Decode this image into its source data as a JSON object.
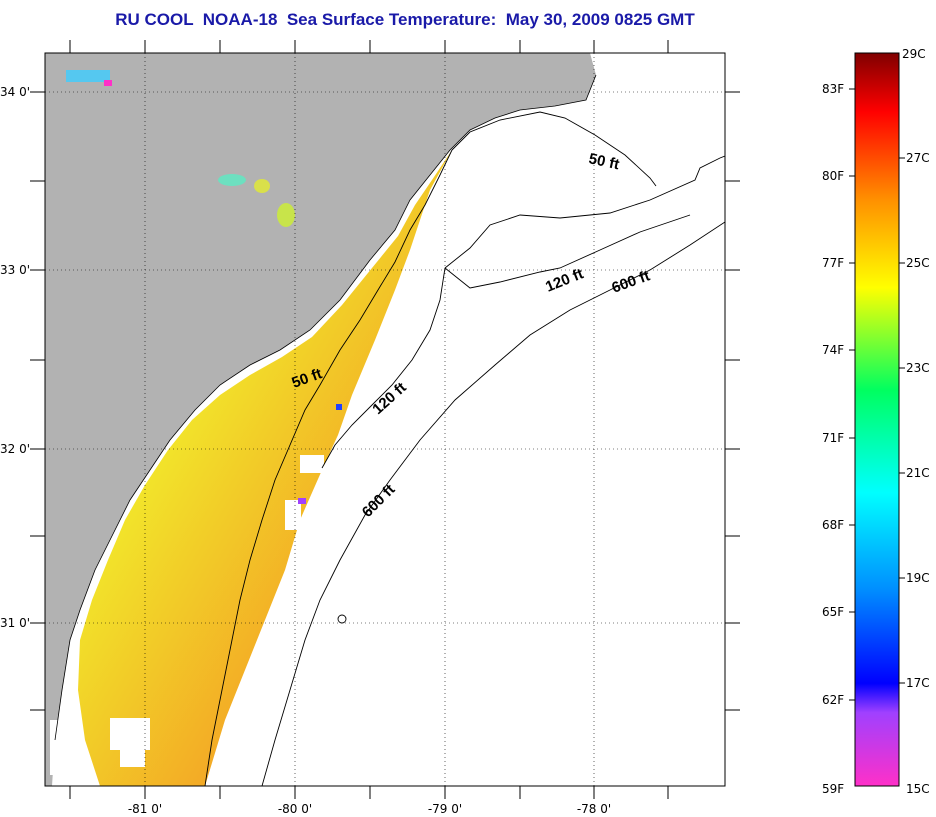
{
  "title": "RU COOL  NOAA-18  Sea Surface Temperature:  May 30, 2009 0825 GMT",
  "map": {
    "lon_range": [
      -81.65,
      -77.15
    ],
    "lat_range": [
      30.05,
      34.22
    ],
    "lat_ticks": [
      {
        "value": 34,
        "label": "34 0'"
      },
      {
        "value": 33,
        "label": "33 0'"
      },
      {
        "value": 32,
        "label": "32 0'"
      },
      {
        "value": 31,
        "label": "31 0'"
      }
    ],
    "lon_ticks": [
      {
        "value": -81,
        "label": "-81 0'"
      },
      {
        "value": -80,
        "label": "-80 0'"
      },
      {
        "value": -79,
        "label": "-79 0'"
      },
      {
        "value": -78,
        "label": "-78 0'"
      }
    ],
    "grid": "dotted",
    "land_color": "#b2b2b2",
    "no_data_color": "#ffffff",
    "contours": [
      {
        "label": "50 ft",
        "text": "50 ft"
      },
      {
        "label": "50 ft",
        "text": "50 ft"
      },
      {
        "label": "120 ft",
        "text": "120 ft"
      },
      {
        "label": "120 ft",
        "text": "120 ft"
      },
      {
        "label": "600 ft",
        "text": "600 ft"
      },
      {
        "label": "600 ft",
        "text": "600 ft"
      }
    ]
  },
  "colorbar": {
    "range_c": [
      15,
      29
    ],
    "fahrenheit_labels": [
      "83F",
      "80F",
      "77F",
      "74F",
      "71F",
      "68F",
      "65F",
      "62F",
      "59F"
    ],
    "celsius_labels": [
      "29C",
      "27C",
      "25C",
      "23C",
      "21C",
      "19C",
      "17C",
      "15C"
    ],
    "stops": [
      "#ff30c8",
      "#a040ff",
      "#0000ff",
      "#0090ff",
      "#00ffff",
      "#00ff60",
      "#ffff00",
      "#ff9000",
      "#ff0000",
      "#800000"
    ]
  }
}
